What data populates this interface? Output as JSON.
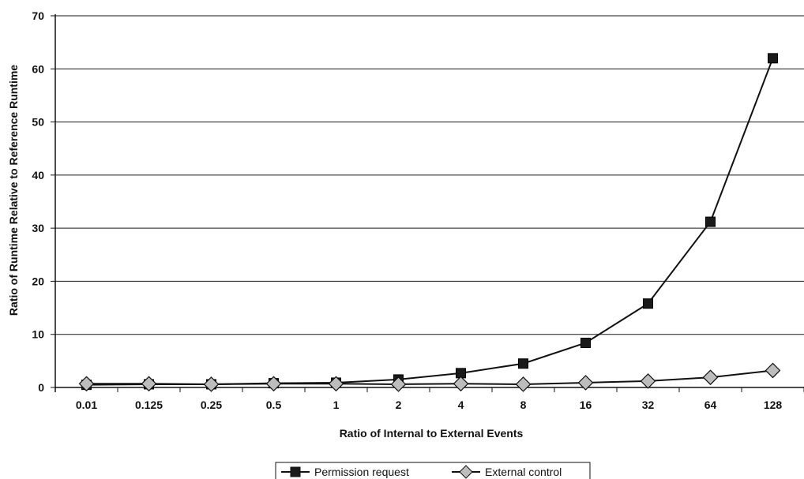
{
  "chart_data": {
    "type": "line",
    "title": "",
    "xlabel": "Ratio of Internal to External Events",
    "ylabel": "Ratio of Runtime Relative to Reference Runtime",
    "categories": [
      "0.01",
      "0.125",
      "0.25",
      "0.5",
      "1",
      "2",
      "4",
      "8",
      "16",
      "32",
      "64",
      "128"
    ],
    "ylim": [
      0,
      70
    ],
    "yticks": [
      "0",
      "10",
      "20",
      "30",
      "40",
      "50",
      "60",
      "70"
    ],
    "grid": "horizontal",
    "legend_position": "bottom",
    "series": [
      {
        "name": "Permission request",
        "marker": "square",
        "color": "#111111",
        "values": [
          0.5,
          0.6,
          0.6,
          0.8,
          0.9,
          1.5,
          2.7,
          4.5,
          8.4,
          15.8,
          31.2,
          62
        ]
      },
      {
        "name": "External control",
        "marker": "diamond",
        "color": "#111111",
        "values": [
          0.7,
          0.7,
          0.6,
          0.7,
          0.7,
          0.6,
          0.7,
          0.6,
          0.9,
          1.2,
          1.9,
          3.2
        ]
      }
    ]
  }
}
